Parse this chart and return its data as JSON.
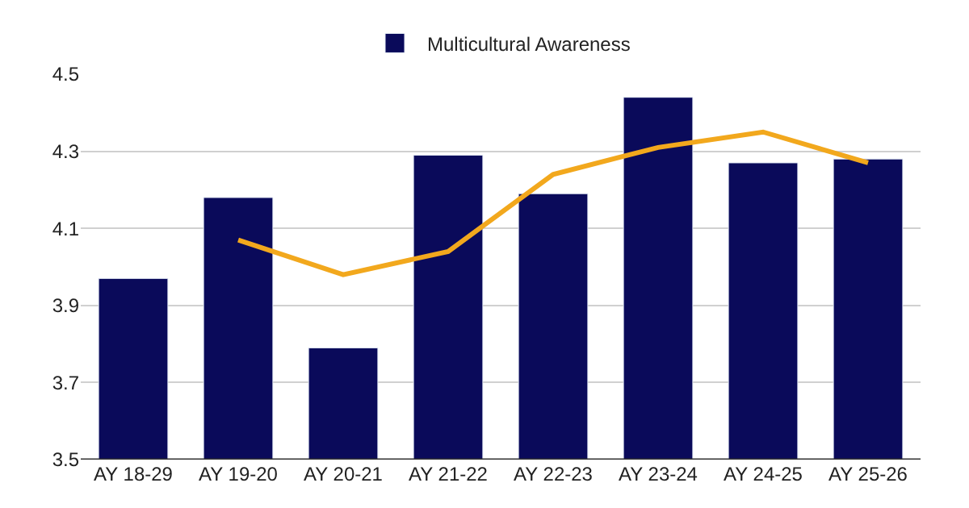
{
  "chart_data": {
    "type": "bar",
    "categories": [
      "AY 18-29",
      "AY 19-20",
      "AY 20-21",
      "AY 21-22",
      "AY 22-23",
      "AY 23-24",
      "AY 24-25",
      "AY 25-26"
    ],
    "series": [
      {
        "name": "Multicultural Awareness",
        "color": "#0a0a5a",
        "values": [
          3.97,
          4.18,
          3.79,
          4.29,
          4.19,
          4.44,
          4.27,
          4.28
        ]
      },
      {
        "type": "line",
        "color": "#f2a81d",
        "values": [
          null,
          4.07,
          3.98,
          4.04,
          4.24,
          4.31,
          4.35,
          4.27
        ]
      }
    ],
    "ylim": [
      3.5,
      4.5
    ],
    "yticks": [
      {
        "value": 3.5,
        "label": "3.5"
      },
      {
        "value": 3.7,
        "label": "3.7"
      },
      {
        "value": 3.9,
        "label": "3.9"
      },
      {
        "value": 4.1,
        "label": "4.1"
      },
      {
        "value": 4.3,
        "label": "4.3"
      },
      {
        "value": 4.5,
        "label": "4.5"
      }
    ],
    "grid": "y",
    "legend": "top",
    "marker": "none",
    "line_style": "solid"
  }
}
